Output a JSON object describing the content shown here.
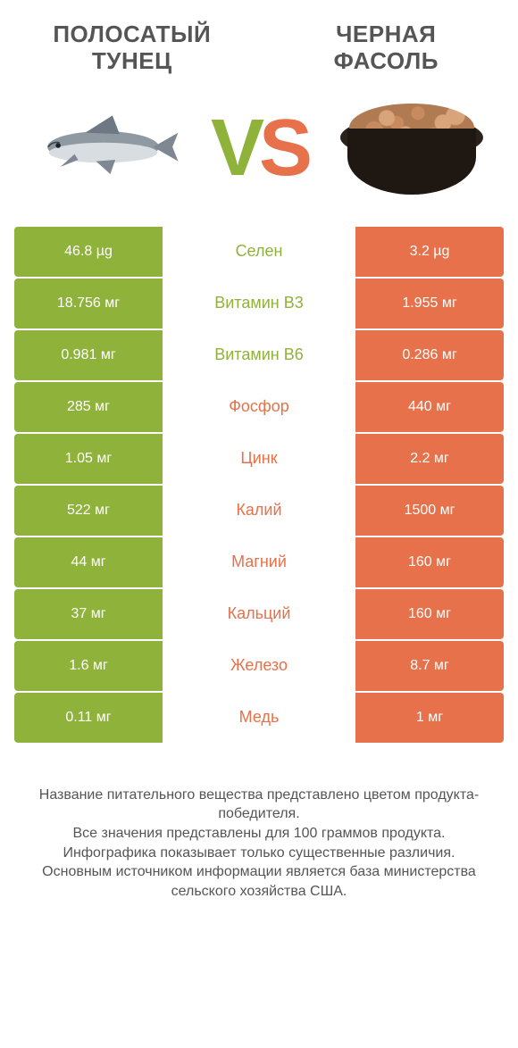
{
  "colors": {
    "left": "#8fb23b",
    "right": "#e6714a",
    "text": "#555555",
    "white": "#ffffff"
  },
  "left_title": "ПОЛОСАТЫЙ ТУНЕЦ",
  "right_title": "ЧЕРНАЯ ФАСОЛЬ",
  "vs_v": "V",
  "vs_s": "S",
  "rows": [
    {
      "left": "46.8 µg",
      "mid": "Селен",
      "right": "3.2 µg",
      "winner": "left"
    },
    {
      "left": "18.756 мг",
      "mid": "Витамин B3",
      "right": "1.955 мг",
      "winner": "left"
    },
    {
      "left": "0.981 мг",
      "mid": "Витамин B6",
      "right": "0.286 мг",
      "winner": "left"
    },
    {
      "left": "285 мг",
      "mid": "Фосфор",
      "right": "440 мг",
      "winner": "right"
    },
    {
      "left": "1.05 мг",
      "mid": "Цинк",
      "right": "2.2 мг",
      "winner": "right"
    },
    {
      "left": "522 мг",
      "mid": "Калий",
      "right": "1500 мг",
      "winner": "right"
    },
    {
      "left": "44 мг",
      "mid": "Магний",
      "right": "160 мг",
      "winner": "right"
    },
    {
      "left": "37 мг",
      "mid": "Кальций",
      "right": "160 мг",
      "winner": "right"
    },
    {
      "left": "1.6 мг",
      "mid": "Железо",
      "right": "8.7 мг",
      "winner": "right"
    },
    {
      "left": "0.11 мг",
      "mid": "Медь",
      "right": "1 мг",
      "winner": "right"
    }
  ],
  "footer": [
    "Название питательного вещества представлено цветом продукта-победителя.",
    "Все значения представлены для 100 граммов продукта.",
    "Инфографика показывает только существенные различия.",
    "Основным источником информации является база министерства сельского хозяйства США."
  ]
}
